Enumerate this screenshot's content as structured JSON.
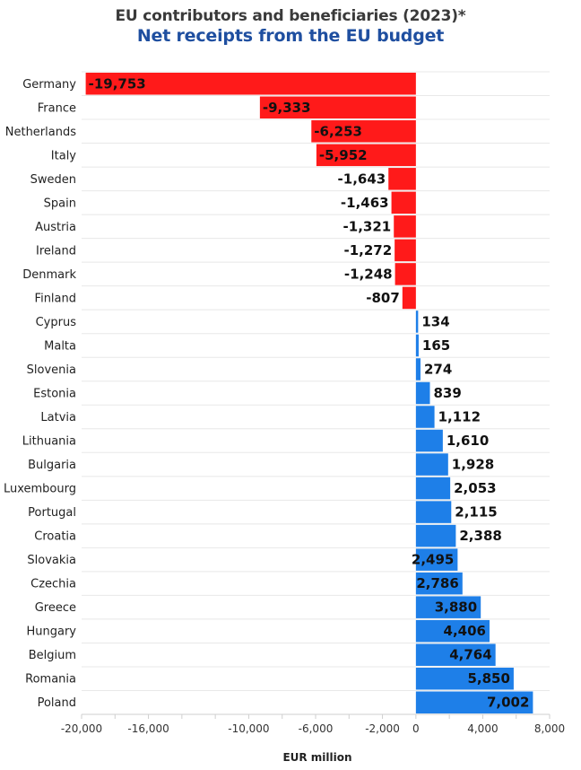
{
  "chart_data": {
    "type": "bar",
    "orientation": "horizontal",
    "title": "EU contributors and beneficiaries (2023)*",
    "subtitle": "Net receipts from the EU budget",
    "xlabel": "EUR million",
    "ylabel": "",
    "xlim": [
      -20000,
      8000
    ],
    "x_ticks": [
      -20000,
      -16000,
      -10000,
      -6000,
      -2000,
      0,
      4000,
      8000
    ],
    "x_tick_labels": [
      "-20,000",
      "-16,000",
      "-10,000",
      "-6,000",
      "-2,000",
      "0",
      "4,000",
      "8,000"
    ],
    "grid": true,
    "categories": [
      "Germany",
      "France",
      "Netherlands",
      "Italy",
      "Sweden",
      "Spain",
      "Austria",
      "Ireland",
      "Denmark",
      "Finland",
      "Cyprus",
      "Malta",
      "Slovenia",
      "Estonia",
      "Latvia",
      "Lithuania",
      "Bulgaria",
      "Luxembourg",
      "Portugal",
      "Croatia",
      "Slovakia",
      "Czechia",
      "Greece",
      "Hungary",
      "Belgium",
      "Romania",
      "Poland"
    ],
    "values": [
      -19753,
      -9333,
      -6253,
      -5952,
      -1643,
      -1463,
      -1321,
      -1272,
      -1248,
      -807,
      134,
      165,
      274,
      839,
      1112,
      1610,
      1928,
      2053,
      2115,
      2388,
      2495,
      2786,
      3880,
      4406,
      4764,
      5850,
      7002
    ],
    "value_labels": [
      "-19,753",
      "-9,333",
      "-6,253",
      "-5,952",
      "-1,643",
      "-1,463",
      "-1,321",
      "-1,272",
      "-1,248",
      "-807",
      "134",
      "165",
      "274",
      "839",
      "1,112",
      "1,610",
      "1,928",
      "2,053",
      "2,115",
      "2,388",
      "2,495",
      "2,786",
      "3,880",
      "4,406",
      "4,764",
      "5,850",
      "7,002"
    ],
    "colors": {
      "negative": "#ff1a1a",
      "positive": "#1e7fe8"
    }
  }
}
